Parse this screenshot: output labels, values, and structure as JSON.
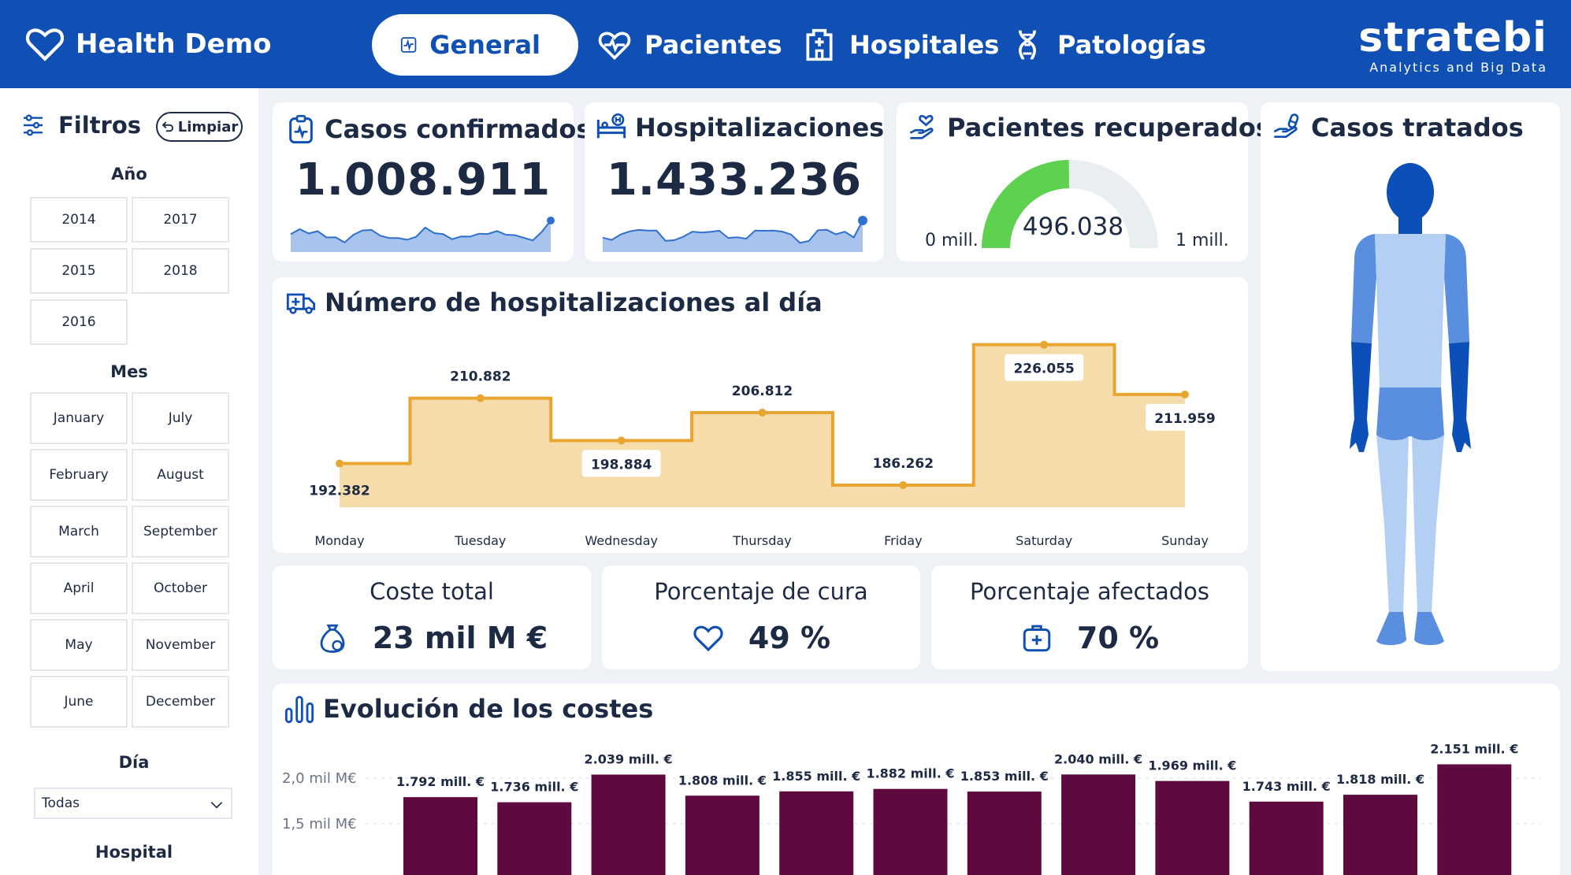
{
  "header": {
    "app_title": "Health Demo",
    "tabs": [
      {
        "label": "General",
        "icon": "activity-icon",
        "active": true
      },
      {
        "label": "Pacientes",
        "icon": "heart-pulse-icon",
        "active": false
      },
      {
        "label": "Hospitales",
        "icon": "hospital-icon",
        "active": false
      },
      {
        "label": "Patologías",
        "icon": "dna-icon",
        "active": false
      }
    ],
    "logo_main": "stratebi",
    "logo_sub": "Analytics and Big Data"
  },
  "sidebar": {
    "filters_label": "Filtros",
    "clear_label": "Limpiar",
    "year_title": "Año",
    "years": [
      "2014",
      "2017",
      "2015",
      "2018",
      "2016"
    ],
    "month_title": "Mes",
    "months": [
      "January",
      "July",
      "February",
      "August",
      "March",
      "September",
      "April",
      "October",
      "May",
      "November",
      "June",
      "December"
    ],
    "day_title": "Día",
    "day_value": "Todas",
    "hospital_title": "Hospital"
  },
  "kpis": {
    "confirmed": {
      "title": "Casos confirmados",
      "value": "1.008.911"
    },
    "hospitalizations": {
      "title": "Hospitalizaciones",
      "value": "1.433.236"
    },
    "recovered": {
      "title": "Pacientes recuperados",
      "value": "496.038",
      "min_label": "0 mill.",
      "max_label": "1 mill.",
      "fraction": 0.496
    },
    "treated": {
      "title": "Casos tratados"
    }
  },
  "metrics": {
    "cost": {
      "title": "Coste total",
      "value": "23 mil M €"
    },
    "cure": {
      "title": "Porcentaje de cura",
      "value": "49 %"
    },
    "affected": {
      "title": "Porcentaje afectados",
      "value": "70 %"
    }
  },
  "colors": {
    "header": "#1050b4",
    "step_line": "#e8a530",
    "step_fill": "#f6dcaa",
    "bar": "#5f0a3f",
    "gauge_fill": "#5ed150",
    "gauge_bg": "#e9eef1",
    "spark_fill": "#a9c4ec",
    "spark_line": "#2f6fd0",
    "body_dark": "#0d4fb8",
    "body_mid": "#5a8fe0",
    "body_light": "#b3d0f4"
  },
  "chart_data": [
    {
      "type": "line",
      "title": "Número de hospitalizaciones al día",
      "step": true,
      "categories": [
        "Monday",
        "Tuesday",
        "Wednesday",
        "Thursday",
        "Friday",
        "Saturday",
        "Sunday"
      ],
      "values": [
        192382,
        210882,
        198884,
        206812,
        186262,
        226055,
        211959
      ],
      "labels": [
        "192.382",
        "210.882",
        "198.884",
        "206.812",
        "186.262",
        "226.055",
        "211.959"
      ],
      "ylim": [
        180000,
        230000
      ]
    },
    {
      "type": "bar",
      "title": "Evolución de los costes",
      "y_ticks": [
        "2,0 mil M€",
        "1,5 mil M€"
      ],
      "y_tick_values": [
        2000,
        1500
      ],
      "values": [
        1792,
        1736,
        2039,
        1808,
        1855,
        1882,
        1853,
        2040,
        1969,
        1743,
        1818,
        2151
      ],
      "labels": [
        "1.792 mill. €",
        "1.736 mill. €",
        "2.039 mill. €",
        "1.808 mill. €",
        "1.855 mill. €",
        "1.882 mill. €",
        "1.853 mill. €",
        "2.040 mill. €",
        "1.969 mill. €",
        "1.743 mill. €",
        "1.818 mill. €",
        "2.151 mill. €"
      ]
    }
  ]
}
